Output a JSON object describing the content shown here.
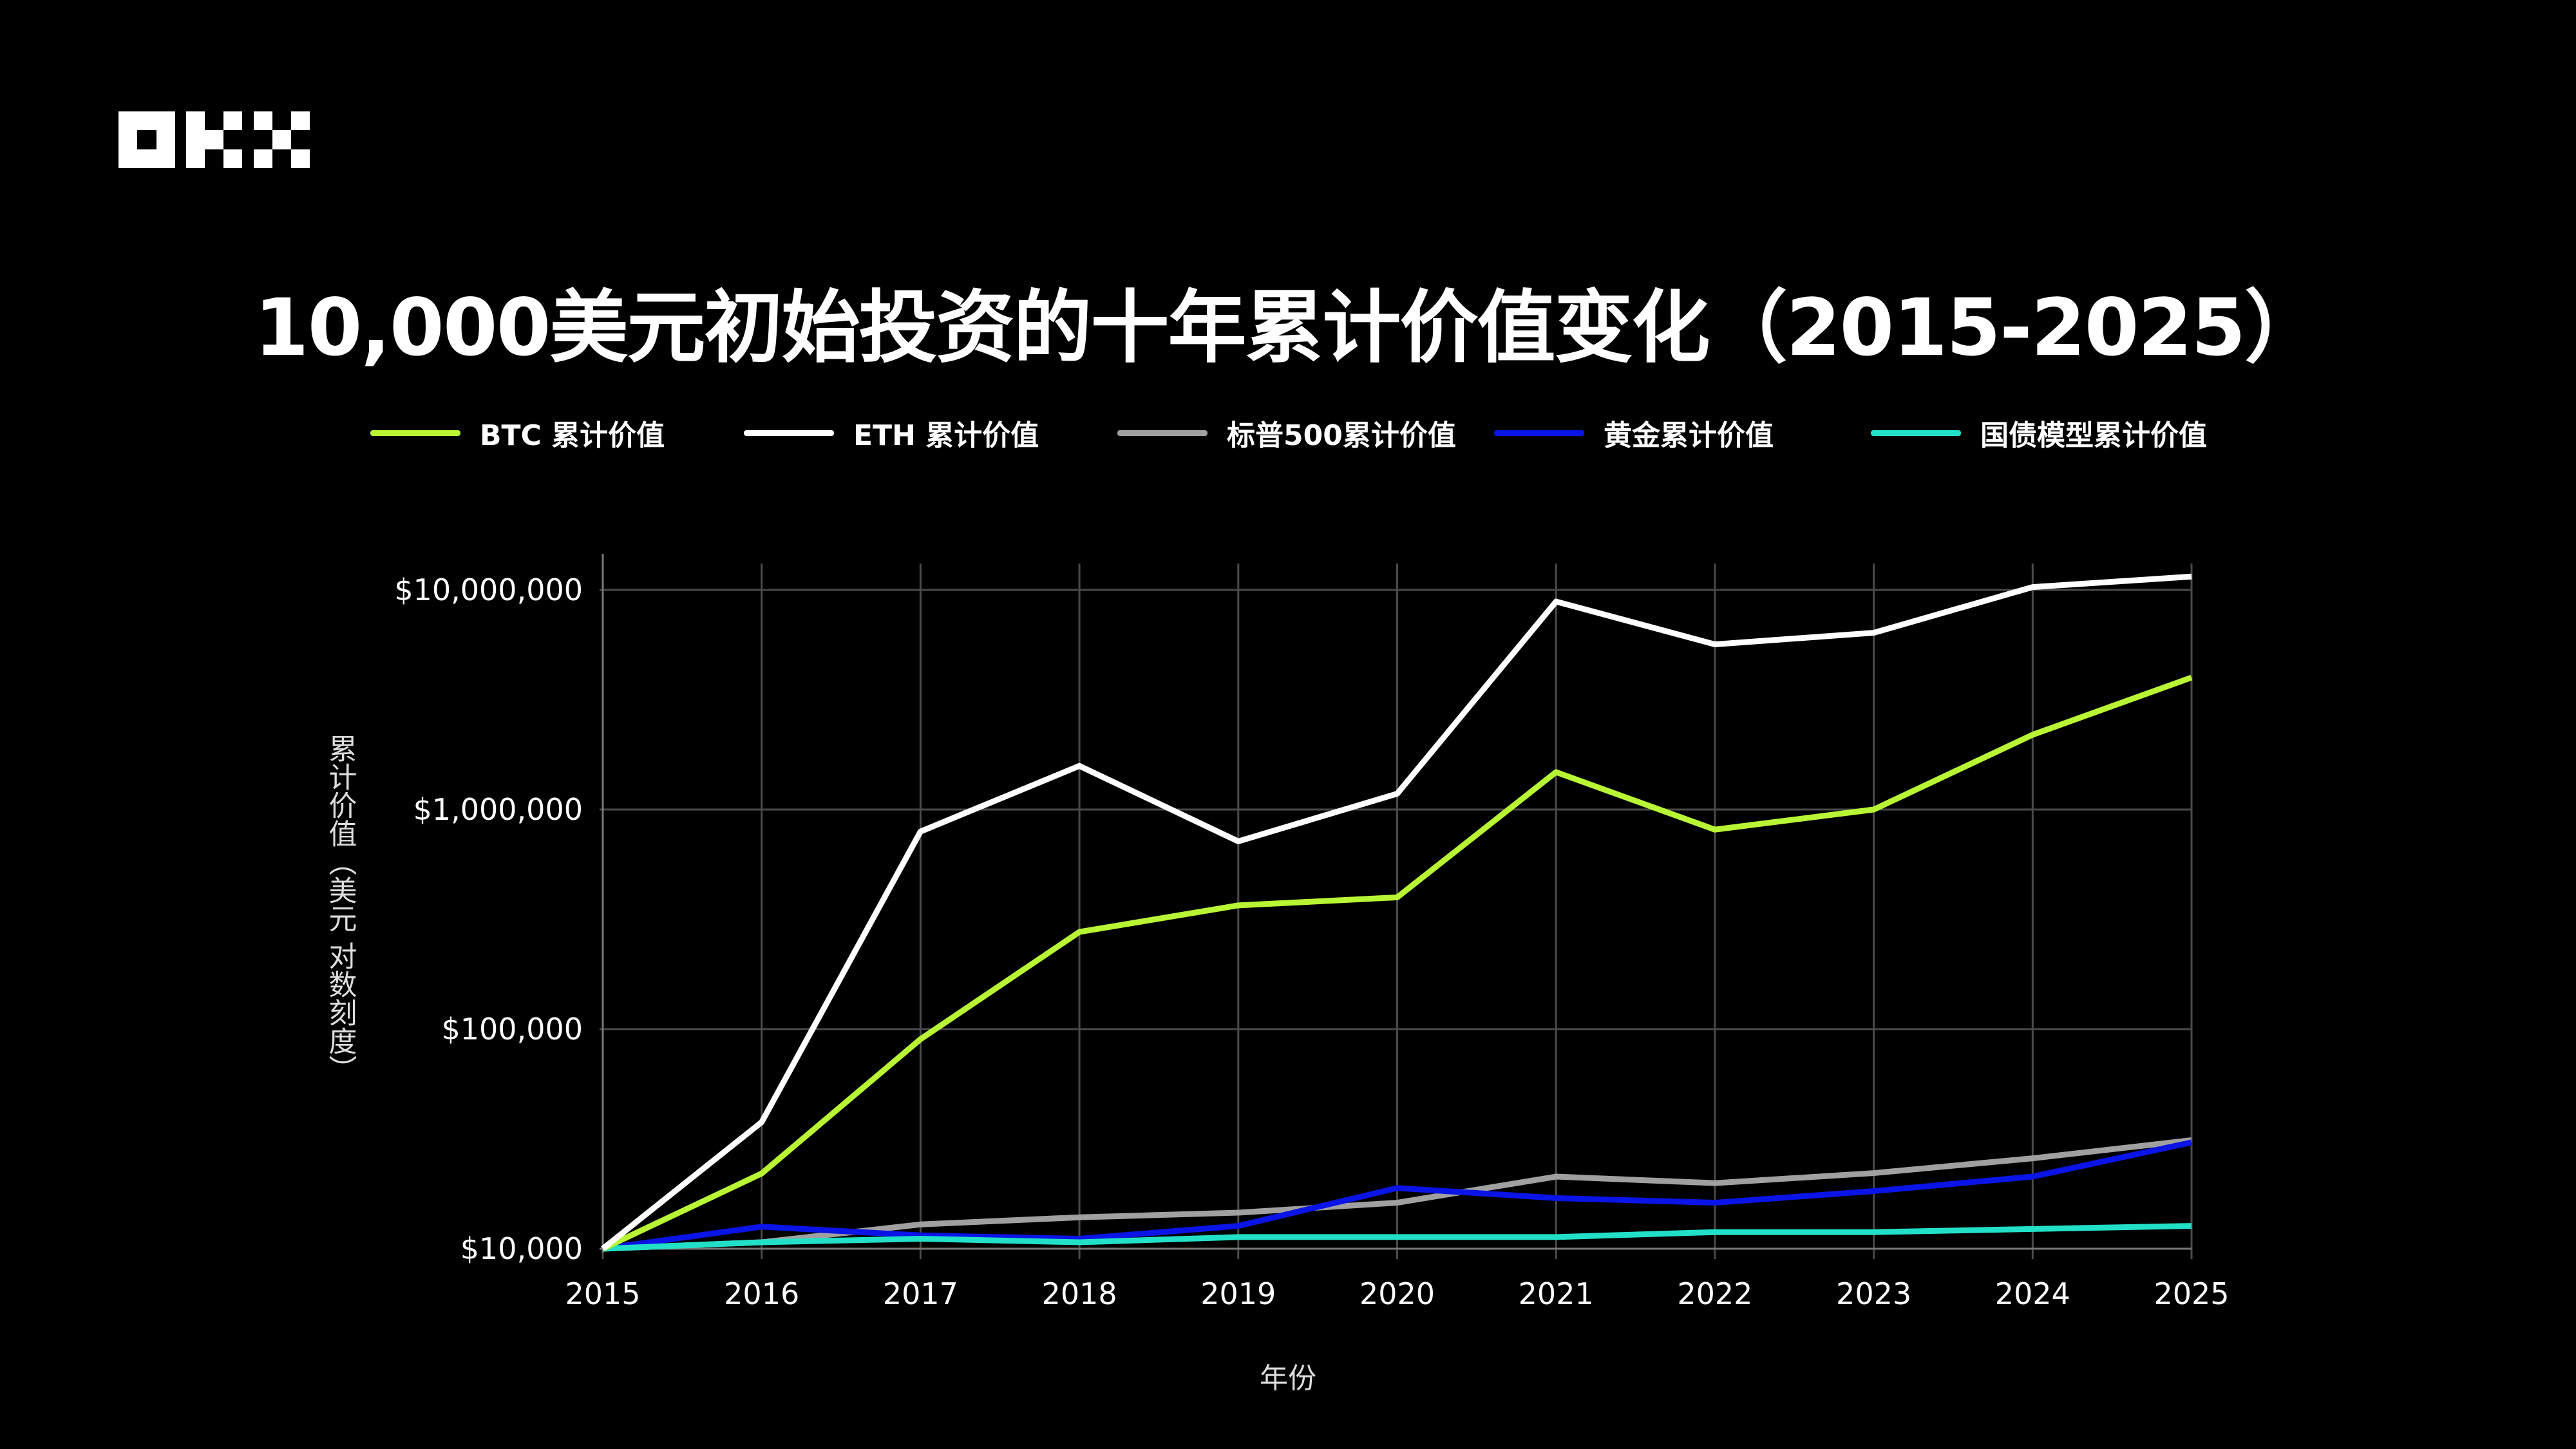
{
  "brand": "OKX",
  "chart_data": {
    "type": "line",
    "title": "10,000美元初始投资的十年累计价值变化（2015-2025）",
    "xlabel": "年份",
    "ylabel": "累计价值（美元 对数刻度）",
    "y_scale": "log",
    "ylim": [
      10000,
      12000000
    ],
    "grid": true,
    "legend_position": "top",
    "x": [
      "2015",
      "2016",
      "2017",
      "2018",
      "2019",
      "2020",
      "2021",
      "2022",
      "2023",
      "2024",
      "2025"
    ],
    "y_ticks": [
      {
        "value": 10000,
        "label": "$10,000"
      },
      {
        "value": 100000,
        "label": "$100,000"
      },
      {
        "value": 1000000,
        "label": "$1,000,000"
      },
      {
        "value": 10000000,
        "label": "$10,000,000"
      }
    ],
    "series": [
      {
        "name": "BTC 累计价值",
        "color": "#b8f534",
        "values": [
          10000,
          22000,
          90000,
          277000,
          366000,
          398000,
          1480000,
          810000,
          1000000,
          2190000,
          3990000
        ]
      },
      {
        "name": "ETH 累计价值",
        "color": "#ffffff",
        "values": [
          10000,
          37700,
          794000,
          1580000,
          716000,
          1180000,
          8850000,
          5650000,
          6380000,
          10300000,
          11500000
        ]
      },
      {
        "name": "标普500累计价值",
        "color": "#a0a0a0",
        "values": [
          10000,
          10700,
          12900,
          13900,
          14600,
          16200,
          21300,
          19900,
          22100,
          25800,
          31200
        ]
      },
      {
        "name": "黄金累计价值",
        "color": "#0a14e6",
        "values": [
          10000,
          12600,
          11500,
          11100,
          12700,
          18900,
          17000,
          16200,
          18300,
          21300,
          30500
        ]
      },
      {
        "name": "国债模型累计价值",
        "color": "#22e0c8",
        "values": [
          10000,
          10700,
          11100,
          10700,
          11300,
          11300,
          11300,
          11900,
          11900,
          12300,
          12700
        ]
      }
    ]
  }
}
